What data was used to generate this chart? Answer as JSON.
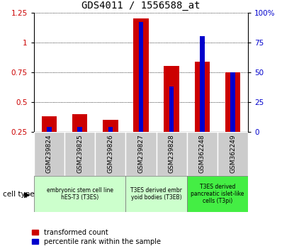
{
  "title": "GDS4011 / 1556588_at",
  "samples": [
    "GSM239824",
    "GSM239825",
    "GSM239826",
    "GSM239827",
    "GSM239828",
    "GSM362248",
    "GSM362249"
  ],
  "transformed_count": [
    0.38,
    0.4,
    0.35,
    1.2,
    0.8,
    0.84,
    0.75
  ],
  "percentile_rank_pct": [
    4,
    4,
    4,
    92,
    38,
    80,
    50
  ],
  "ylim_left": [
    0.25,
    1.25
  ],
  "ylim_right": [
    0,
    100
  ],
  "yticks_left": [
    0.25,
    0.5,
    0.75,
    1.0,
    1.25
  ],
  "ytick_labels_left": [
    "0.25",
    "0.5",
    "0.75",
    "1",
    "1.25"
  ],
  "yticks_right": [
    0,
    25,
    50,
    75,
    100
  ],
  "ytick_labels_right": [
    "0",
    "25",
    "50",
    "75",
    "100%"
  ],
  "bar_color_red": "#cc0000",
  "bar_color_blue": "#0000cc",
  "groups": [
    {
      "start": 0,
      "end": 2,
      "label": "embryonic stem cell line\nhES-T3 (T3ES)",
      "color": "#ccffcc"
    },
    {
      "start": 3,
      "end": 4,
      "label": "T3ES derived embr\nyoid bodies (T3EB)",
      "color": "#ccffcc"
    },
    {
      "start": 5,
      "end": 6,
      "label": "T3ES derived\npancreatic islet-like\ncells (T3pi)",
      "color": "#44ee44"
    }
  ],
  "cell_type_label": "cell type",
  "legend_red": "transformed count",
  "legend_blue": "percentile rank within the sample",
  "bar_width": 0.5,
  "blue_bar_width": 0.15,
  "sample_bg_color": "#cccccc"
}
